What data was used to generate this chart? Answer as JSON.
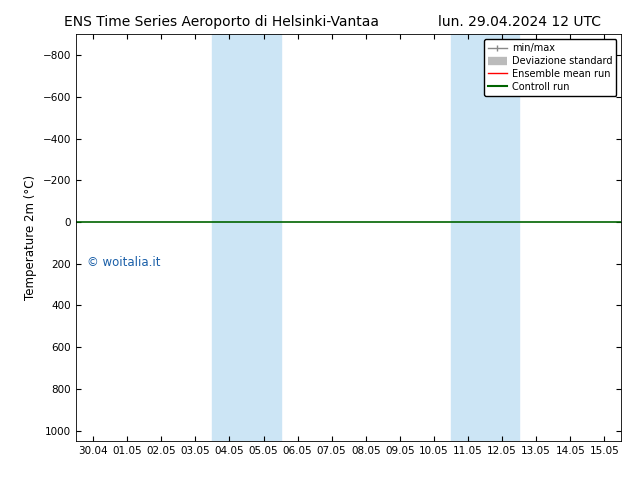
{
  "title_left": "ENS Time Series Aeroporto di Helsinki-Vantaa",
  "title_right": "lun. 29.04.2024 12 UTC",
  "ylabel": "Temperature 2m (°C)",
  "xlabel_ticks": [
    "30.04",
    "01.05",
    "02.05",
    "03.05",
    "04.05",
    "05.05",
    "06.05",
    "07.05",
    "08.05",
    "09.05",
    "10.05",
    "11.05",
    "12.05",
    "13.05",
    "14.05",
    "15.05"
  ],
  "yticks": [
    -800,
    -600,
    -400,
    -200,
    0,
    200,
    400,
    600,
    800,
    1000
  ],
  "ylim_top": -900,
  "ylim_bottom": 1050,
  "xlim_min": -0.5,
  "xlim_max": 15.5,
  "shaded_bands": [
    {
      "x_start": 4.0,
      "x_end": 6.0
    },
    {
      "x_start": 11.0,
      "x_end": 13.0
    }
  ],
  "horizontal_line_y": 0,
  "horizontal_line_color": "#006400",
  "background_color": "#ffffff",
  "shade_color": "#cce5f5",
  "watermark_text": "© woitalia.it",
  "watermark_color": "#1a5fa8",
  "legend_items": [
    {
      "label": "min/max",
      "color": "#888888",
      "lw": 1.0
    },
    {
      "label": "Deviazione standard",
      "color": "#bbbbbb",
      "lw": 6
    },
    {
      "label": "Ensemble mean run",
      "color": "red",
      "lw": 1.0
    },
    {
      "label": "Controll run",
      "color": "#006400",
      "lw": 1.5
    }
  ],
  "title_fontsize": 10,
  "tick_fontsize": 7.5,
  "ylabel_fontsize": 8.5,
  "watermark_fontsize": 8.5,
  "legend_fontsize": 7
}
